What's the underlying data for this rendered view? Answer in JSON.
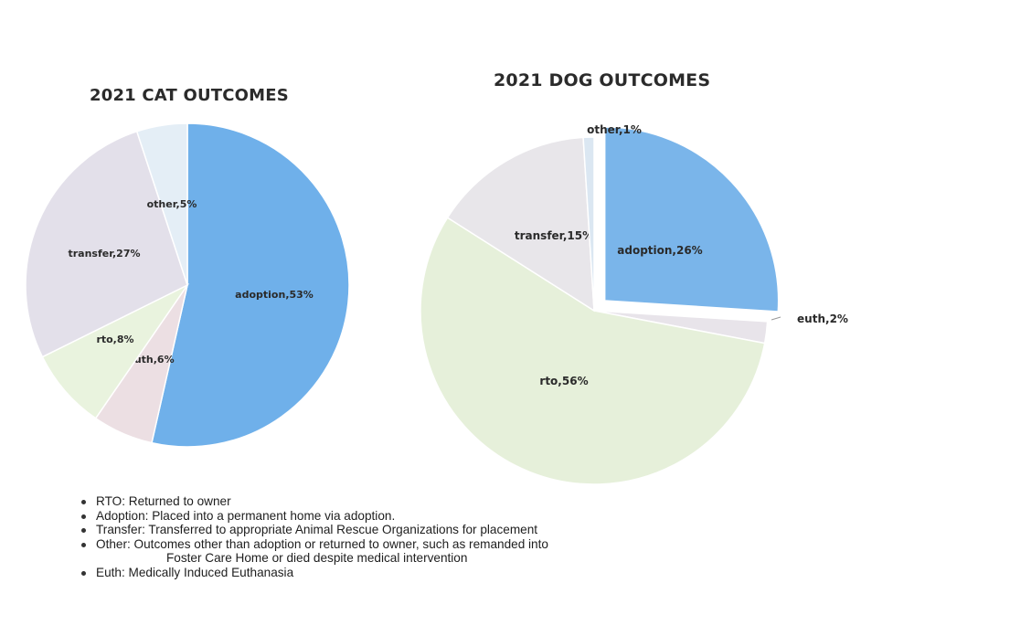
{
  "chart_data": [
    {
      "type": "pie",
      "title": "2021 CAT OUTCOMES",
      "slices": [
        {
          "label": "adoption",
          "value": 53,
          "text": "adoption,53%",
          "color": "#6fb0ea"
        },
        {
          "label": "euth",
          "value": 6,
          "text": "euth,6%",
          "color": "#ecdfe3"
        },
        {
          "label": "rto",
          "value": 8,
          "text": "rto,8%",
          "color": "#e9f3de"
        },
        {
          "label": "transfer",
          "value": 27,
          "text": "transfer,27%",
          "color": "#e3e0ea"
        },
        {
          "label": "other",
          "value": 5,
          "text": "other,5%",
          "color": "#e4eef6"
        }
      ]
    },
    {
      "type": "pie",
      "title": "2021 DOG OUTCOMES",
      "slices": [
        {
          "label": "adoption",
          "value": 26,
          "text": "adoption,26%",
          "color": "#7ab5ea"
        },
        {
          "label": "euth",
          "value": 2,
          "text": "euth,2%",
          "color": "#e8e4ea"
        },
        {
          "label": "rto",
          "value": 56,
          "text": "rto,56%",
          "color": "#e6f0da"
        },
        {
          "label": "transfer",
          "value": 15,
          "text": "transfer,15%",
          "color": "#e8e6ea"
        },
        {
          "label": "other",
          "value": 1,
          "text": "other,1%",
          "color": "#dbe7f2"
        }
      ]
    }
  ],
  "notes": {
    "items": [
      {
        "text": "RTO:  Returned to owner"
      },
      {
        "text": "Adoption:  Placed into a permanent home via adoption."
      },
      {
        "text": "Transfer:  Transferred to appropriate Animal Rescue Organizations for placement"
      },
      {
        "text": "Other: Outcomes other than adoption or returned to owner, such as remanded into",
        "continuation": "Foster Care Home or died despite medical intervention"
      },
      {
        "text": "Euth:  Medically Induced Euthanasia"
      }
    ]
  }
}
